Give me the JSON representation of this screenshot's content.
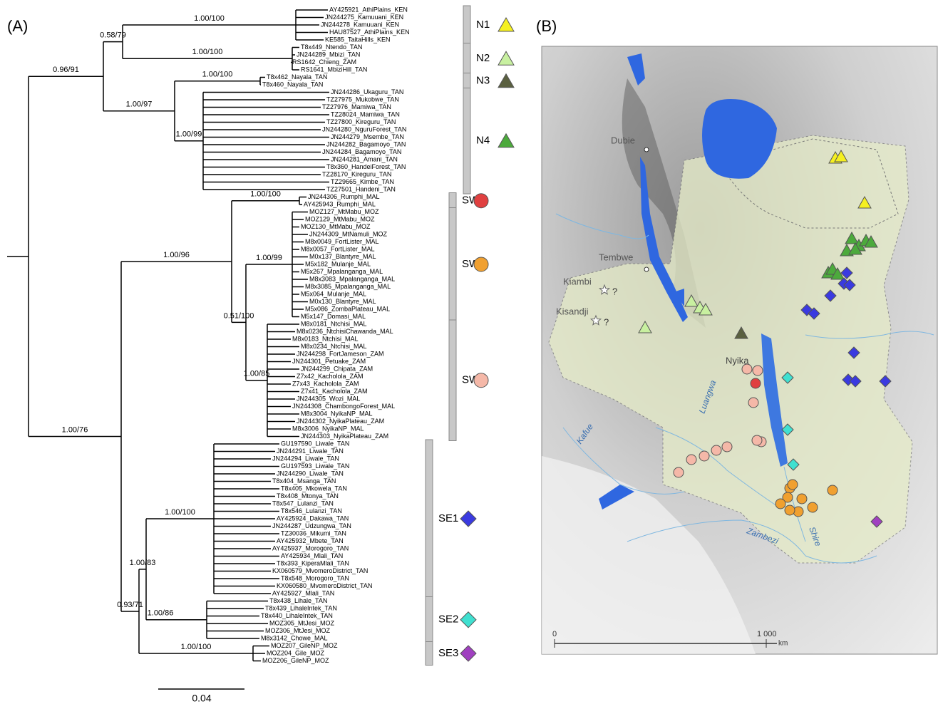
{
  "panels": {
    "a": "(A)",
    "b": "(B)"
  },
  "tree": {
    "clades": [
      {
        "label": "N1",
        "tips": [
          "AY425921_AthiPlains_KEN",
          "JN244275_Kamuuani_KEN",
          "JN244278_Kamuuani_KEN",
          "HAU87527_AthiPlains_KEN",
          "KE585_TaitaHills_KEN"
        ]
      },
      {
        "label": "N2",
        "tips": [
          "T8x449_Ntendo_TAN",
          "JN244289_Mbizi_TAN",
          "RS1642_Chieng_ZAM",
          "RS1641_MbiziHill_TAN"
        ]
      },
      {
        "label": "N3",
        "tips": [
          "T8x462_Nayala_TAN",
          "T8x460_Nayala_TAN"
        ]
      },
      {
        "label": "N4",
        "tips": [
          "JN244286_Ukaguru_TAN",
          "TZ27975_Mukobwe_TAN",
          "TZ27976_Mamiwa_TAN",
          "TZ28024_Mamiwa_TAN",
          "TZ27800_Kireguru_TAN",
          "JN244280_NguruForest_TAN",
          "JN244279_Msembe_TAN",
          "JN244282_Bagamoyo_TAN",
          "JN244284_Bagamoyo_TAN",
          "JN244281_Amani_TAN",
          "T8x360_HandeiForest_TAN",
          "TZ28170_Kireguru_TAN",
          "TZ29665_Kimbe_TAN",
          "TZ27501_Handeni_TAN"
        ]
      },
      {
        "label": "SW1",
        "tips": [
          "JN244306_Rumphi_MAL",
          "AY425943_Rumphi_MAL"
        ]
      },
      {
        "label": "SW2",
        "tips": [
          "MOZ127_MtMabu_MOZ",
          "MOZ129_MtMabu_MOZ",
          "MOZ130_MtMabu_MOZ",
          "JN244309_MtNamuli_MOZ",
          "M8x0049_FortLister_MAL",
          "M8x0057_FortLister_MAL",
          "M0x137_Blantyre_MAL",
          "M5x182_Mulanje_MAL",
          "M5x267_Mpalanganga_MAL",
          "M8x3083_Mpalanganga_MAL",
          "M8x3085_Mpalanganga_MAL",
          "M5x064_Mulanje_MAL",
          "M0x130_Blantyre_MAL",
          "M5x086_ZombaPlateau_MAL",
          "M5x147_Domasi_MAL"
        ]
      },
      {
        "label": "SW3",
        "tips": [
          "M8x0181_Ntchisi_MAL",
          "M8x0236_NtchisiChawanda_MAL",
          "M8x0183_Ntchisi_MAL",
          "M8x0234_Ntchisi_MAL",
          "JN244298_FortJameson_ZAM",
          "JN244301_Petuake_ZAM",
          "JN244299_Chipata_ZAM",
          "Z7x42_Kacholola_ZAM",
          "Z7x43_Kacholola_ZAM",
          "Z7x41_Kacholola_ZAM",
          "JN244305_Wozi_MAL",
          "JN244308_ChambongoForest_MAL",
          "M8x3004_NyikaNP_MAL",
          "JN244302_NyikaPlateau_ZAM",
          "M8x3006_NyikaNP_MAL",
          "JN244303_NyikaPlateau_ZAM"
        ]
      },
      {
        "label": "SE1",
        "tips": [
          "GU197590_Liwale_TAN",
          "JN244291_Liwale_TAN",
          "JN244294_Liwale_TAN",
          "GU197593_Liwale_TAN",
          "JN244290_Liwale_TAN",
          "T8x404_Msanga_TAN",
          "T8x405_Mkowela_TAN",
          "T8x408_Mtonya_TAN",
          "T8x547_Lulanzi_TAN",
          "T8x546_Lulanzi_TAN",
          "AY425924_Dakawa_TAN",
          "JN244287_Udzungwa_TAN",
          "TZ30036_Mikumi_TAN",
          "AY425932_Mbete_TAN",
          "AY425937_Morogoro_TAN",
          "AY425934_Mlali_TAN",
          "T8x393_KiperaMlali_TAN",
          "KX060579_MvomeroDistrict_TAN",
          "T8x548_Morogoro_TAN",
          "KX060580_MvomeroDistrict_TAN",
          "AY425927_Mlali_TAN"
        ]
      },
      {
        "label": "SE2",
        "tips": [
          "T8x438_Lihale_TAN",
          "T8x439_LihaleIntek_TAN",
          "T8x440_LihaleIntek_TAN",
          "MOZ305_MtJesi_MOZ",
          "MOZ306_MtJesi_MOZ",
          "M8x3142_Chowe_MAL"
        ]
      },
      {
        "label": "SE3",
        "tips": [
          "MOZ207_GileNP_MOZ",
          "MOZ204_Gile_MOZ",
          "MOZ206_GileNP_MOZ"
        ]
      }
    ],
    "supports": [
      "0.96/91",
      "0.58/79",
      "1.00/100",
      "1.00/100",
      "1.00/100",
      "1.00/97",
      "1.00/99",
      "1.00/100",
      "1.00/96",
      "1.00/99",
      "0.51/100",
      "1.00/85",
      "1.00/76",
      "1.00/100",
      "1.00/83",
      "0.93/71",
      "1.00/86",
      "1.00/100"
    ],
    "scale": "0.04"
  },
  "map": {
    "places": [
      "Dubie",
      "Tembwe",
      "Kiambi",
      "Kisandji",
      "Nyika"
    ],
    "uncertain": [
      "?",
      "?"
    ],
    "rivers": [
      "Luangwa",
      "Kafue",
      "Zambezi",
      "Shire"
    ],
    "scale": {
      "start": "0",
      "end": "1 000",
      "unit": "km"
    }
  }
}
